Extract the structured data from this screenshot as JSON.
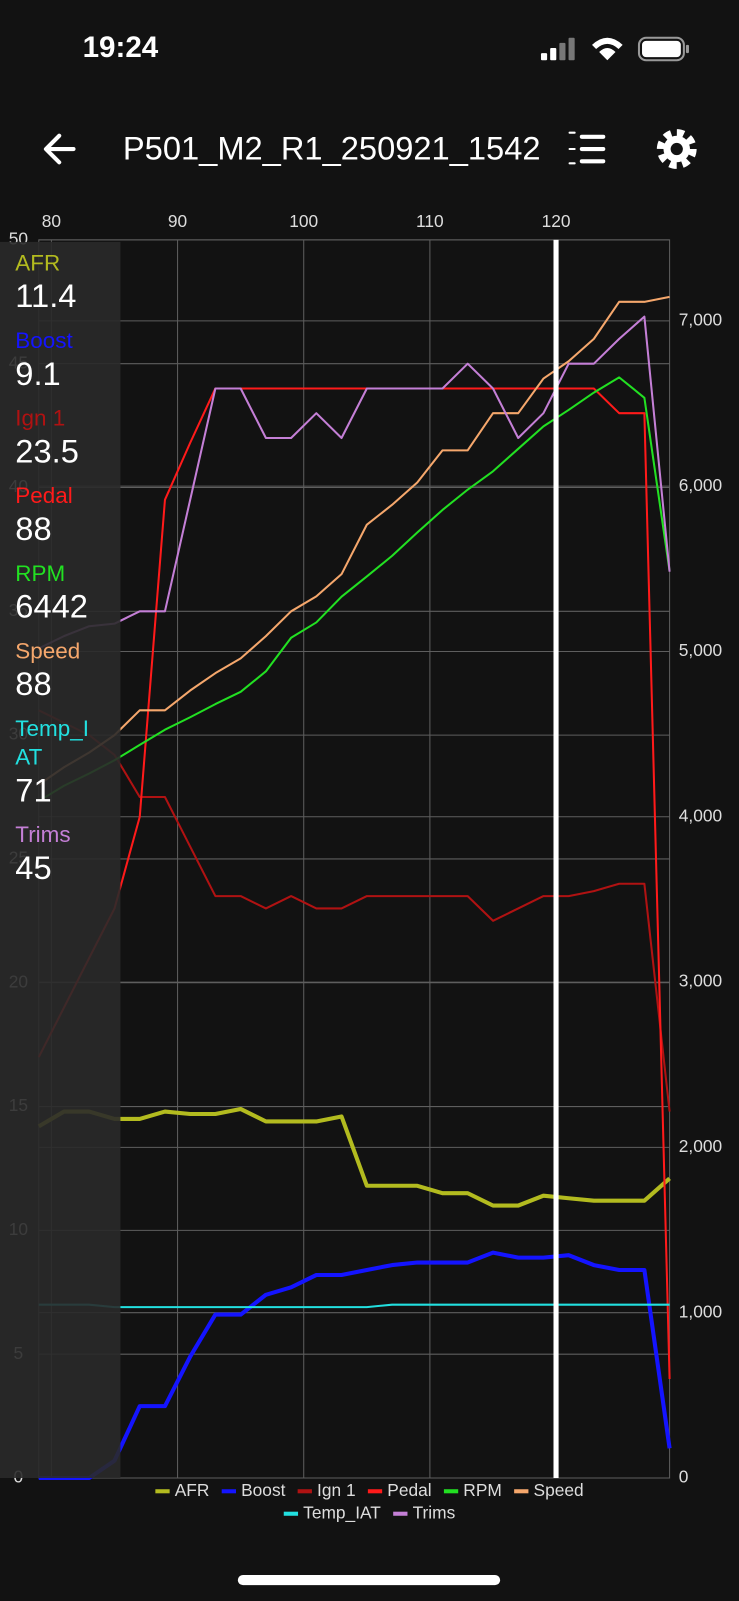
{
  "status": {
    "time": "19:24"
  },
  "header": {
    "title": "P501_M2_R1_250921_1542"
  },
  "chart_data": {
    "type": "line",
    "x": [
      79,
      81,
      83,
      85,
      87,
      89,
      91,
      93,
      95,
      97,
      99,
      101,
      103,
      105,
      107,
      109,
      111,
      113,
      115,
      117,
      119,
      121,
      123,
      125,
      127,
      129
    ],
    "xlim": [
      79,
      129
    ],
    "xticks": [
      80,
      90,
      100,
      110,
      120
    ],
    "ylim": [
      0,
      50
    ],
    "yticks": [
      0,
      5,
      10,
      15,
      20,
      25,
      30,
      35,
      40,
      45,
      50
    ],
    "y2lim": [
      0,
      7490
    ],
    "y2ticks": [
      0,
      {
        "value": 1000,
        "label": "1,000"
      },
      {
        "value": 2000,
        "label": "2,000"
      },
      {
        "value": 3000,
        "label": "3,000"
      },
      {
        "value": 4000,
        "label": "4,000"
      },
      {
        "value": 5000,
        "label": "5,000"
      },
      {
        "value": 6000,
        "label": "6,000"
      },
      {
        "value": 7000,
        "label": "7,000"
      }
    ],
    "grid": true,
    "legend": "bottom",
    "series": [
      {
        "name": "AFR",
        "color": "#b3bb1f",
        "width": 4,
        "values": [
          14.2,
          14.8,
          14.8,
          14.5,
          14.5,
          14.8,
          14.7,
          14.7,
          14.9,
          14.4,
          14.4,
          14.4,
          14.6,
          11.8,
          11.8,
          11.8,
          11.5,
          11.5,
          11.0,
          11.0,
          11.4,
          11.3,
          11.2,
          11.2,
          11.2,
          12.1
        ]
      },
      {
        "name": "Boost",
        "color": "#1414ff",
        "width": 4,
        "values": [
          0,
          0,
          0,
          0.7,
          2.9,
          2.9,
          4.9,
          6.6,
          6.6,
          7.4,
          7.7,
          8.2,
          8.2,
          8.4,
          8.6,
          8.7,
          8.7,
          8.7,
          9.1,
          8.9,
          8.9,
          9.0,
          8.6,
          8.4,
          8.4,
          1.2
        ]
      },
      {
        "name": "Ign 1",
        "color": "#b01212",
        "width": 2,
        "values": [
          31,
          30.5,
          30,
          29.2,
          27.5,
          27.5,
          25.5,
          23.5,
          23.5,
          23,
          23.5,
          23,
          23,
          23.5,
          23.5,
          23.5,
          23.5,
          23.5,
          22.5,
          23,
          23.5,
          23.5,
          23.7,
          24,
          24,
          14.8
        ]
      },
      {
        "name": "Pedal",
        "color": "#ff1a1a",
        "width": 2,
        "values": [
          17,
          19,
          21,
          23,
          26.7,
          39.5,
          41.8,
          44,
          44,
          44,
          44,
          44,
          44,
          44,
          44,
          44,
          44,
          44,
          44,
          44,
          44,
          44,
          44,
          43,
          43,
          4
        ]
      },
      {
        "name": "RPM",
        "color": "#22e022",
        "width": 2,
        "axis": "y2",
        "values": [
          4095,
          4188,
          4262,
          4342,
          4435,
          4527,
          4602,
          4682,
          4756,
          4880,
          5083,
          5176,
          5331,
          5454,
          5578,
          5720,
          5856,
          5979,
          6090,
          6226,
          6362,
          6461,
          6566,
          6658,
          6535,
          5485
        ]
      },
      {
        "name": "Speed",
        "color": "#f5a76c",
        "width": 2,
        "values": [
          28,
          28.7,
          29.3,
          30.0,
          31.0,
          31.0,
          31.8,
          32.5,
          33.1,
          34.0,
          35.0,
          35.6,
          36.5,
          38.5,
          39.3,
          40.2,
          41.5,
          41.5,
          43.0,
          43.0,
          44.4,
          45.1,
          46.0,
          47.5,
          47.5,
          47.7
        ]
      },
      {
        "name": "Temp_IAT",
        "color": "#22e0e0",
        "width": 2,
        "values": [
          7,
          7,
          7,
          6.9,
          6.9,
          6.9,
          6.9,
          6.9,
          6.9,
          6.9,
          6.9,
          6.9,
          6.9,
          6.9,
          7,
          7,
          7,
          7,
          7,
          7,
          7,
          7,
          7,
          7,
          7,
          7
        ]
      },
      {
        "name": "Trims",
        "color": "#c47fd6",
        "width": 2,
        "values": [
          33.5,
          34,
          34.4,
          34.5,
          35.0,
          35.0,
          39.5,
          44,
          44,
          42,
          42,
          43,
          42,
          44,
          44,
          44,
          44,
          45,
          44,
          42,
          43,
          45,
          45,
          46,
          46.9,
          36.6
        ]
      }
    ],
    "cursor": {
      "x": 120,
      "values": [
        11.4,
        9.1,
        23.5,
        88,
        6442,
        88,
        71,
        45
      ]
    }
  }
}
